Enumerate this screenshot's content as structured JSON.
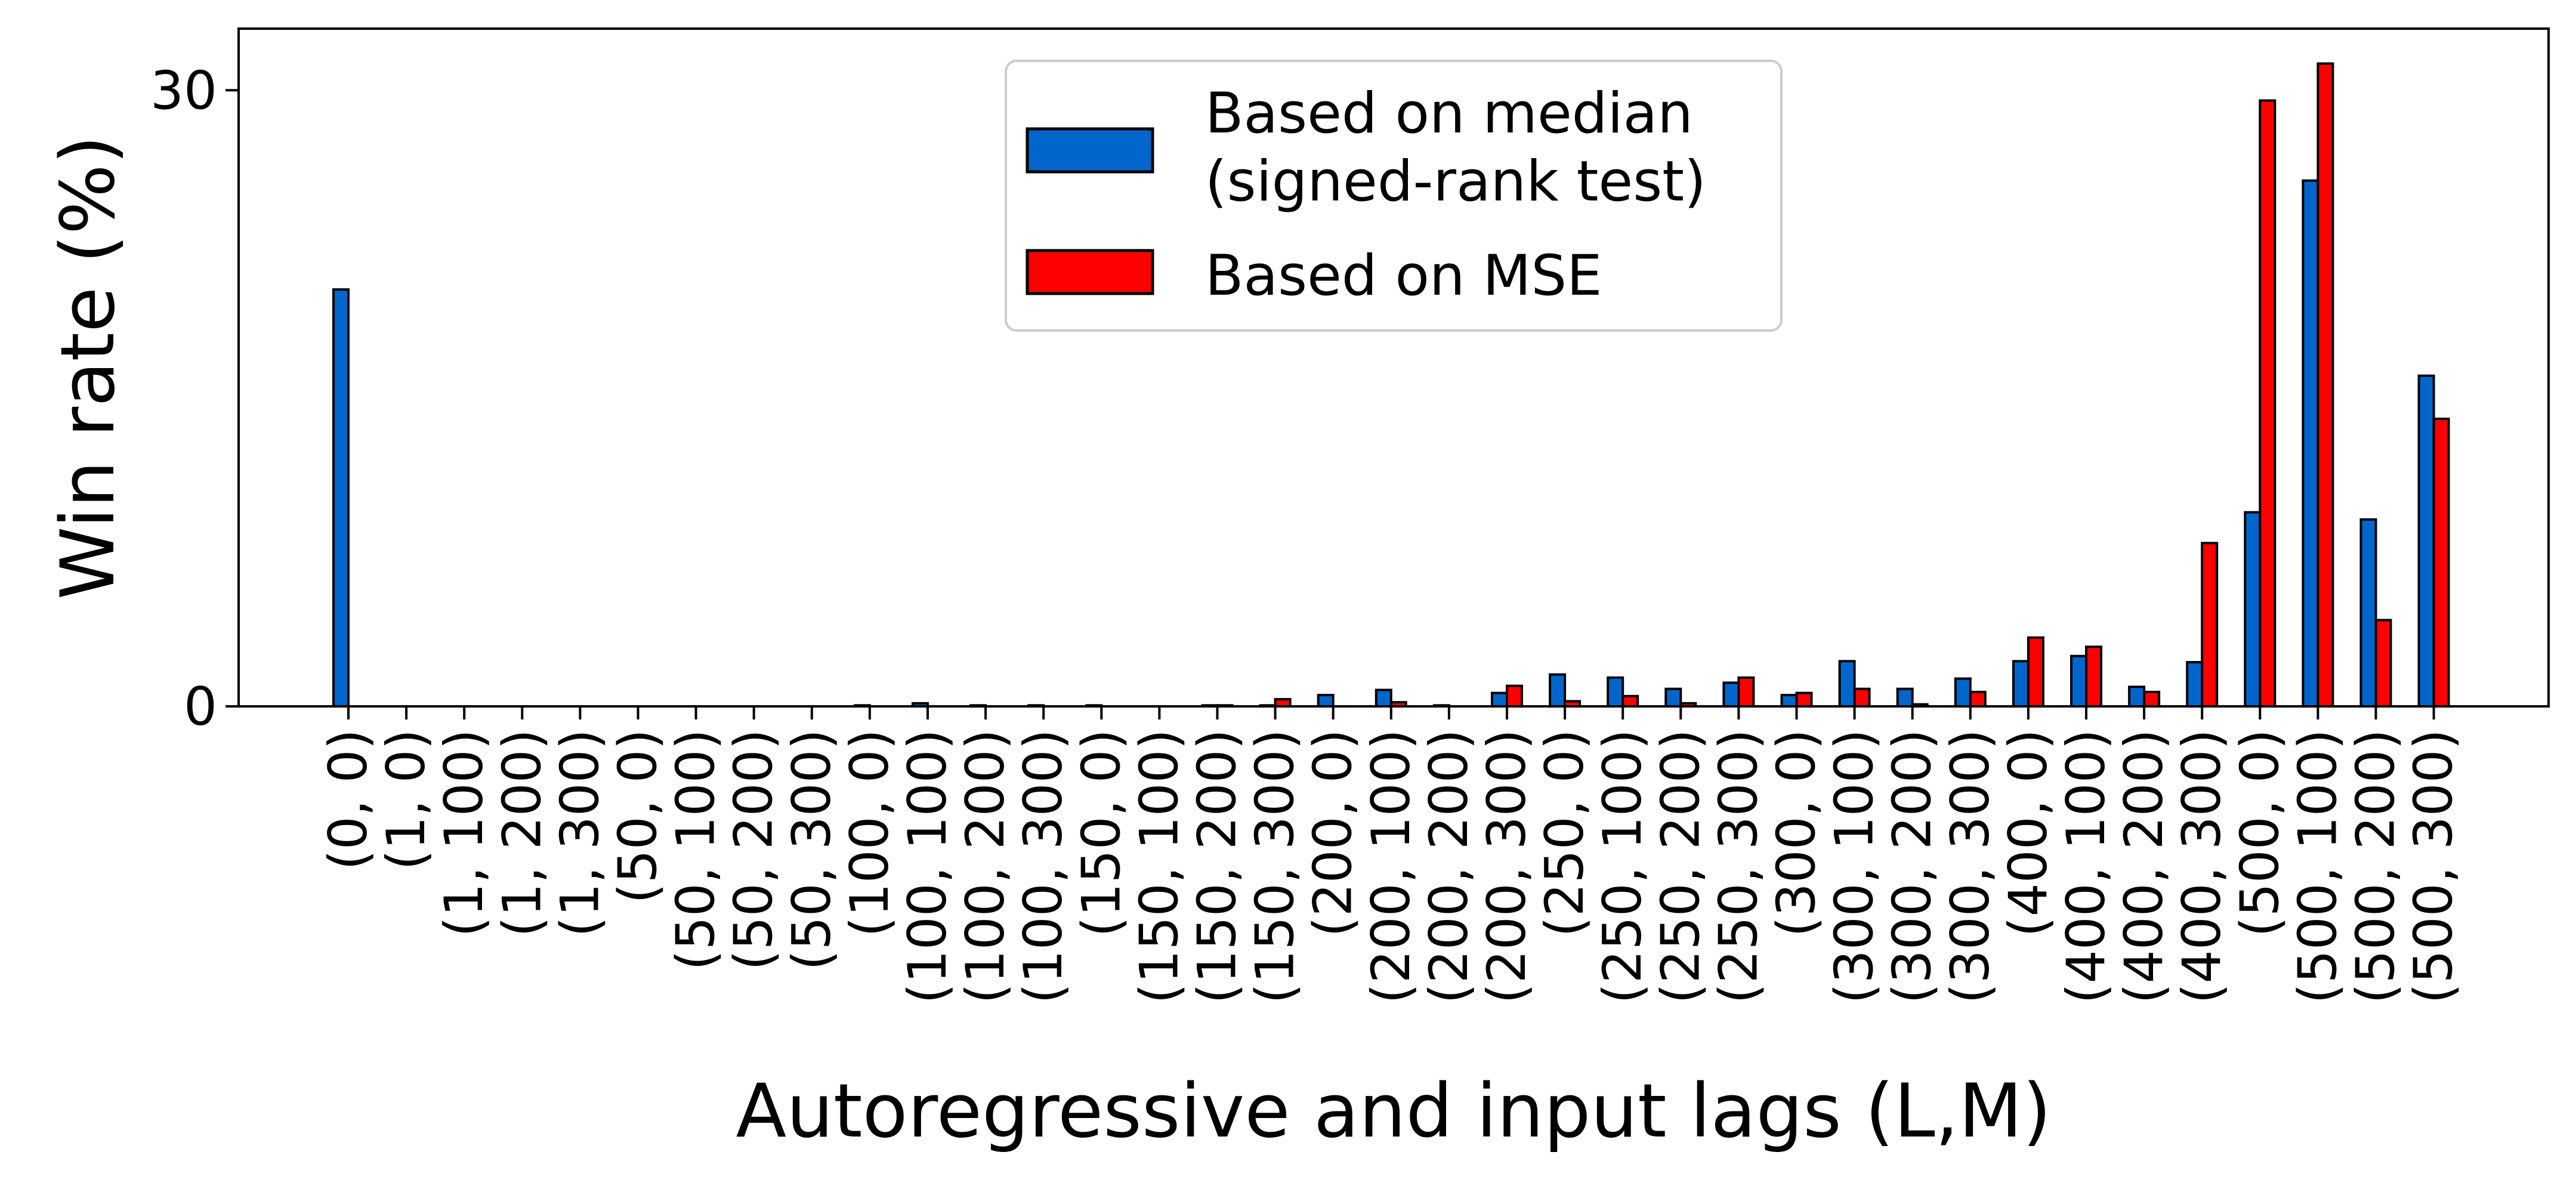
{
  "chart_data": {
    "type": "bar",
    "title": "",
    "xlabel": "Autoregressive and input lags (L,M)",
    "ylabel": "Win rate (%)",
    "ylim": [
      0,
      33
    ],
    "yticks": [
      0,
      30
    ],
    "ytick_labels": [
      "0",
      "30"
    ],
    "grid": false,
    "legend_position": "top-center",
    "categories": [
      "(0, 0)",
      "(1, 0)",
      "(1, 100)",
      "(1, 200)",
      "(1, 300)",
      "(50, 0)",
      "(50, 100)",
      "(50, 200)",
      "(50, 300)",
      "(100, 0)",
      "(100, 100)",
      "(100, 200)",
      "(100, 300)",
      "(150, 0)",
      "(150, 100)",
      "(150, 200)",
      "(150, 300)",
      "(200, 0)",
      "(200, 100)",
      "(200, 200)",
      "(200, 300)",
      "(250, 0)",
      "(250, 100)",
      "(250, 200)",
      "(250, 300)",
      "(300, 0)",
      "(300, 100)",
      "(300, 200)",
      "(300, 300)",
      "(400, 0)",
      "(400, 100)",
      "(400, 200)",
      "(400, 300)",
      "(500, 0)",
      "(500, 100)",
      "(500, 200)",
      "(500, 300)"
    ],
    "series": [
      {
        "name": "Based on median\n(signed-rank test)",
        "color": "#0066cc",
        "values": [
          20.3,
          0,
          0,
          0,
          0,
          0,
          0,
          0,
          0,
          0.05,
          0.15,
          0.05,
          0.05,
          0.05,
          0,
          0.05,
          0.05,
          0.55,
          0.8,
          0.05,
          0.65,
          1.55,
          1.4,
          0.85,
          1.15,
          0.55,
          2.2,
          0.85,
          1.35,
          2.2,
          2.45,
          0.95,
          2.15,
          9.45,
          25.6,
          9.1,
          16.1
        ]
      },
      {
        "name": "Based on MSE",
        "color": "#ff0000",
        "values": [
          0,
          0,
          0,
          0,
          0,
          0,
          0,
          0,
          0,
          0,
          0,
          0,
          0,
          0,
          0,
          0.05,
          0.35,
          0,
          0.2,
          0,
          1.0,
          0.25,
          0.5,
          0.15,
          1.4,
          0.65,
          0.85,
          0.1,
          0.7,
          3.35,
          2.9,
          0.7,
          7.95,
          29.5,
          31.3,
          4.2,
          14.0
        ]
      }
    ]
  }
}
